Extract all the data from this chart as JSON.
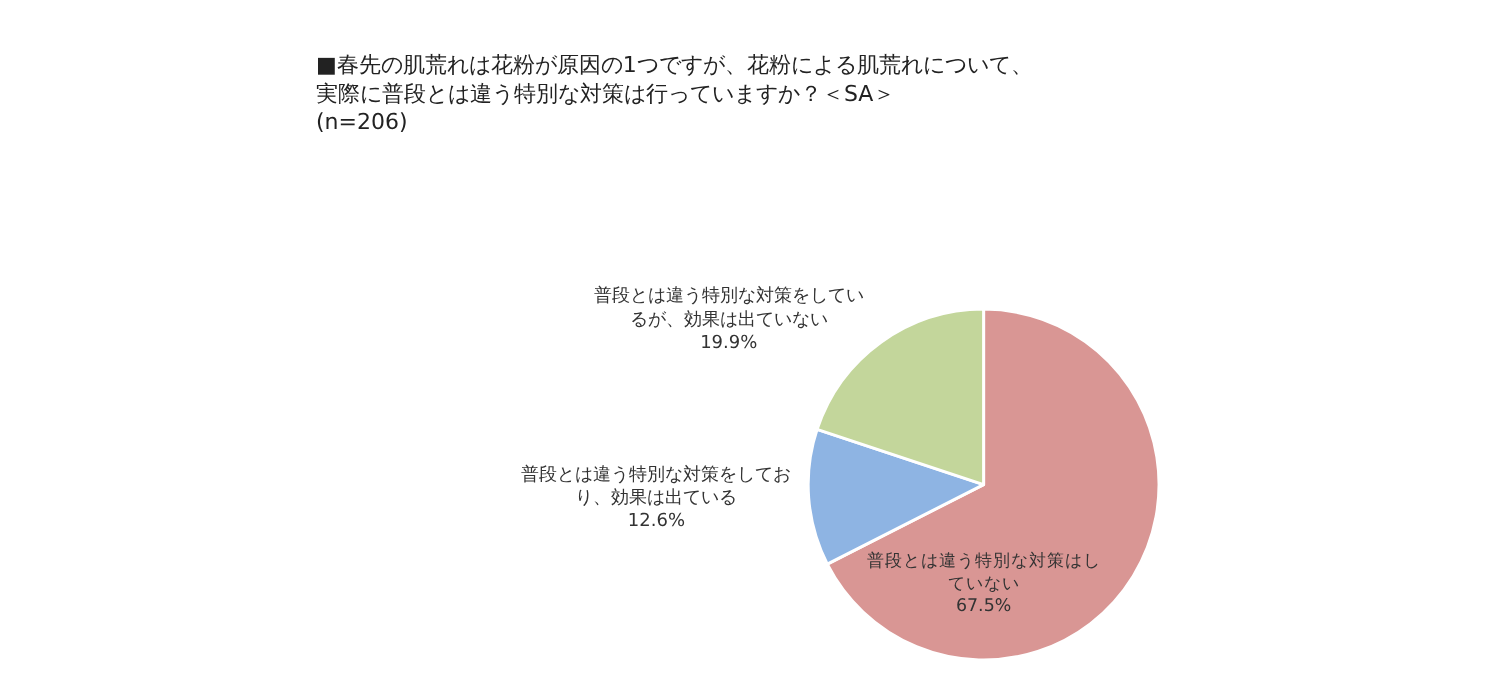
{
  "chart_data": {
    "type": "pie",
    "title": "■春先の肌荒れは花粉が原因の1つですが、花粉による肌荒れについて、実際に普段とは違う特別な対策は行っていますか？＜SA＞\n(n=206)",
    "categories": [
      "普段とは違う特別な対策はしていない",
      "普段とは違う特別な対策をしており、効果は出ている",
      "普段とは違う特別な対策をしているが、効果は出ていない"
    ],
    "values": [
      67.5,
      12.6,
      19.9
    ],
    "colors": [
      "#d99694",
      "#8eb4e3",
      "#c3d69b"
    ],
    "value_labels": [
      "67.5%",
      "12.6%",
      "19.9%"
    ],
    "legend": false
  }
}
